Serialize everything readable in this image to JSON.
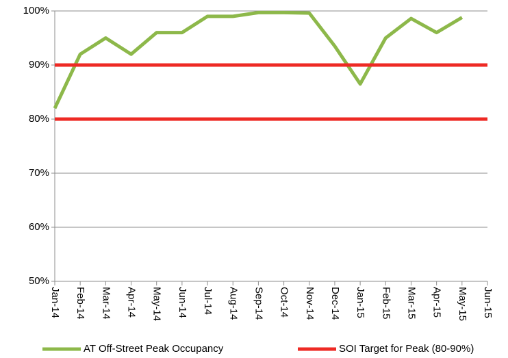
{
  "chart_data": {
    "type": "line",
    "categories": [
      "Jan-14",
      "Feb-14",
      "Mar-14",
      "Apr-14",
      "May-14",
      "Jun-14",
      "Jul-14",
      "Aug-14",
      "Sep-14",
      "Oct-14",
      "Nov-14",
      "Dec-14",
      "Jan-15",
      "Feb-15",
      "Mar-15",
      "Apr-15",
      "May-15",
      "Jun-15"
    ],
    "series": [
      {
        "name": "AT Off-Street Peak Occupancy",
        "color": "#8db84a",
        "values": [
          82,
          92,
          95,
          92,
          96,
          96,
          99,
          99,
          99.7,
          99.7,
          99.6,
          93.5,
          86.5,
          95,
          98.6,
          96,
          98.8,
          null
        ]
      },
      {
        "name": "SOI Target for Peak (80-90%)",
        "color": "#ee2a24",
        "values": [
          90,
          90,
          90,
          90,
          90,
          90,
          90,
          90,
          90,
          90,
          90,
          90,
          90,
          90,
          90,
          90,
          90,
          90
        ]
      },
      {
        "color": "#ee2a24",
        "values": [
          80,
          80,
          80,
          80,
          80,
          80,
          80,
          80,
          80,
          80,
          80,
          80,
          80,
          80,
          80,
          80,
          80,
          80
        ]
      }
    ],
    "ylim": [
      50,
      100
    ],
    "yticks": [
      {
        "value": 50,
        "label": "50%"
      },
      {
        "value": 60,
        "label": "60%"
      },
      {
        "value": 70,
        "label": "70%"
      },
      {
        "value": 80,
        "label": "80%"
      },
      {
        "value": 90,
        "label": "90%"
      },
      {
        "value": 100,
        "label": "100%"
      }
    ],
    "grid": true,
    "legend": "bottom"
  }
}
